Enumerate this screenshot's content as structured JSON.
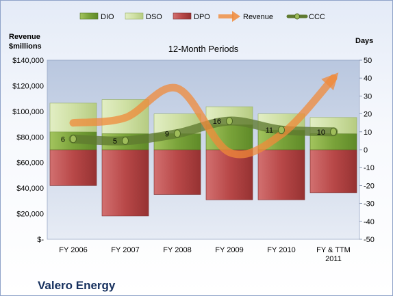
{
  "company": "Valero Energy",
  "chart_data": {
    "type": "bar",
    "title": "12-Month Periods",
    "categories": [
      "FY 2006",
      "FY 2007",
      "FY 2008",
      "FY 2009",
      "FY 2010",
      "FY & TTM\n2011"
    ],
    "left_axis": {
      "label": "Revenue\n$millions",
      "min": 0,
      "max": 140000,
      "step": 20000,
      "tick_labels": [
        "$-",
        "$20,000",
        "$40,000",
        "$60,000",
        "$80,000",
        "$100,000",
        "$120,000",
        "$140,000"
      ]
    },
    "right_axis": {
      "label": "Days",
      "min": -50,
      "max": 50,
      "step": 10
    },
    "legend": [
      "DIO",
      "DSO",
      "DPO",
      "Revenue",
      "CCC"
    ],
    "legend_position": "top",
    "series": [
      {
        "name": "DIO",
        "type": "stacked-bar",
        "axis": "days",
        "color": "#80a840",
        "values": [
          10,
          9,
          9,
          14,
          11,
          9
        ]
      },
      {
        "name": "DSO",
        "type": "stacked-bar",
        "axis": "days",
        "color": "#cfe0a4",
        "values": [
          16,
          19,
          11,
          10,
          9,
          9
        ]
      },
      {
        "name": "DPO",
        "type": "bar-below-zero",
        "axis": "days",
        "color": "#b84848",
        "values": [
          -20,
          -37,
          -25,
          -28,
          -28,
          -24
        ]
      },
      {
        "name": "Revenue",
        "type": "line",
        "axis": "left",
        "color": "#f08a3a",
        "values": [
          91000,
          95000,
          118000,
          68000,
          82000,
          126000
        ]
      },
      {
        "name": "CCC",
        "type": "line",
        "axis": "days",
        "color": "#5f7a30",
        "values": [
          6,
          5,
          9,
          16,
          11,
          10
        ]
      }
    ]
  }
}
